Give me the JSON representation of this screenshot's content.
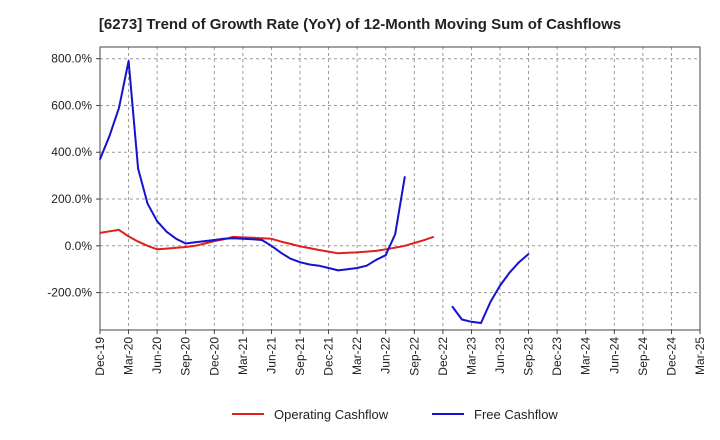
{
  "chart_data": {
    "type": "line",
    "title": "[6273]  Trend of Growth Rate (YoY) of 12-Month Moving Sum of Cashflows",
    "xlabel": "",
    "ylabel": "",
    "ylim": [
      -360,
      850
    ],
    "y_ticks": [
      "800.0%",
      "600.0%",
      "400.0%",
      "200.0%",
      "0.0%",
      "-200.0%"
    ],
    "y_tick_values": [
      800,
      600,
      400,
      200,
      0,
      -200
    ],
    "x_ticks": [
      "Dec-19",
      "Mar-20",
      "Jun-20",
      "Sep-20",
      "Dec-20",
      "Mar-21",
      "Jun-21",
      "Sep-21",
      "Dec-21",
      "Mar-22",
      "Jun-22",
      "Sep-22",
      "Dec-22",
      "Mar-23",
      "Jun-23",
      "Sep-23",
      "Dec-23",
      "Mar-24",
      "Jun-24",
      "Sep-24",
      "Dec-24",
      "Mar-25"
    ],
    "grid": true,
    "legend": "bottom",
    "series": [
      {
        "name": "Operating Cashflow",
        "color": "#e0201b",
        "values": [
          55,
          62,
          68,
          40,
          18,
          0,
          -15,
          -12,
          -8,
          -5,
          0,
          10,
          20,
          28,
          38,
          36,
          34,
          32,
          30,
          18,
          8,
          -2,
          -10,
          -18,
          -25,
          -32,
          -30,
          -28,
          -25,
          -22,
          -15,
          -8,
          0,
          12,
          24,
          38
        ]
      },
      {
        "name": "Free Cashflow",
        "color": "#1313cc",
        "values": [
          370,
          470,
          590,
          790,
          330,
          180,
          105,
          60,
          30,
          10,
          15,
          20,
          25,
          30,
          32,
          30,
          28,
          25,
          0,
          -30,
          -55,
          -70,
          -80,
          -85,
          -95,
          -105,
          -100,
          -95,
          -85,
          -60,
          -40,
          50,
          295,
          null,
          null,
          null,
          null,
          -260,
          -315,
          -325,
          -330,
          -240,
          -170,
          -115,
          -70,
          -35
        ]
      }
    ]
  }
}
